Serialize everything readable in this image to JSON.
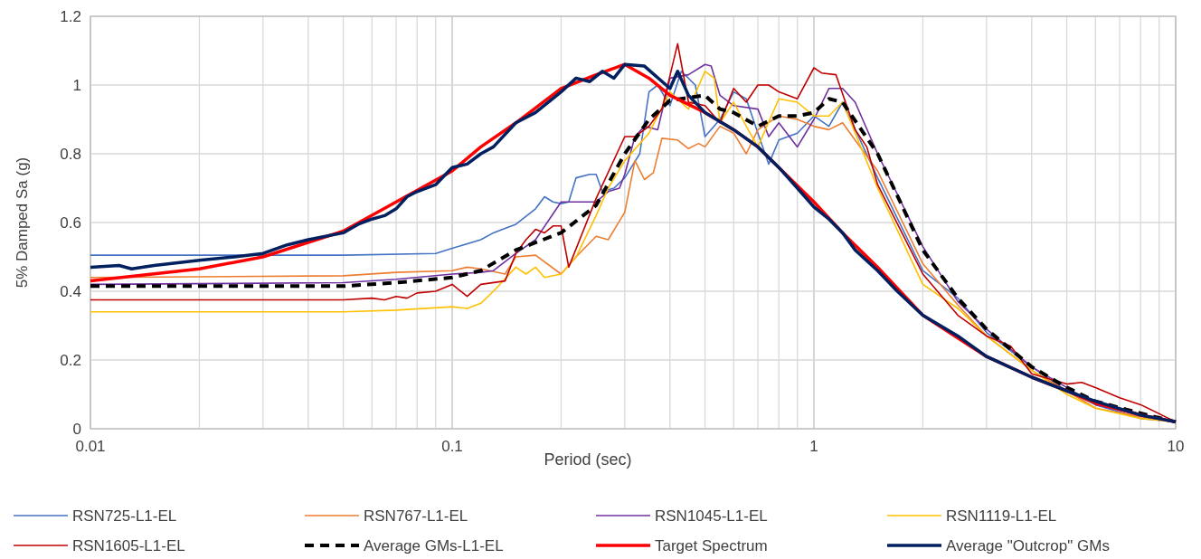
{
  "chart_data": {
    "type": "line",
    "xlabel": "Period (sec)",
    "ylabel": "5% Damped Sa (g)",
    "log": "x",
    "xlim": [
      0.01,
      10
    ],
    "xticks": [
      0.01,
      0.1,
      1,
      10
    ],
    "ylim": [
      0,
      1.2
    ],
    "yticks": [
      0,
      0.2,
      0.4,
      0.6,
      0.8,
      1,
      1.2
    ],
    "grid": true,
    "legend": "bottom",
    "line_style": "solid",
    "series": [
      {
        "name": "RSN725-L1-EL",
        "color": "#4472c4",
        "x": [
          0.01,
          0.05,
          0.09,
          0.1,
          0.12,
          0.13,
          0.15,
          0.17,
          0.18,
          0.19,
          0.2,
          0.21,
          0.22,
          0.24,
          0.25,
          0.26,
          0.28,
          0.3,
          0.33,
          0.35,
          0.37,
          0.4,
          0.43,
          0.47,
          0.5,
          0.55,
          0.6,
          0.65,
          0.7,
          0.75,
          0.8,
          0.9,
          1,
          1.1,
          1.2,
          1.5,
          2,
          2.5,
          3,
          4,
          5,
          6,
          8,
          10
        ],
        "values": [
          0.505,
          0.505,
          0.51,
          0.525,
          0.55,
          0.57,
          0.595,
          0.64,
          0.675,
          0.66,
          0.655,
          0.66,
          0.73,
          0.74,
          0.74,
          0.69,
          0.7,
          0.73,
          0.8,
          0.98,
          1,
          0.94,
          1.04,
          1,
          0.85,
          0.9,
          0.98,
          0.96,
          0.86,
          0.77,
          0.84,
          0.86,
          0.91,
          0.88,
          0.95,
          0.73,
          0.46,
          0.38,
          0.28,
          0.18,
          0.11,
          0.07,
          0.03,
          0.02
        ]
      },
      {
        "name": "RSN767-L1-EL",
        "color": "#ed7d31",
        "x": [
          0.01,
          0.05,
          0.07,
          0.1,
          0.11,
          0.12,
          0.14,
          0.15,
          0.17,
          0.2,
          0.22,
          0.25,
          0.27,
          0.3,
          0.32,
          0.34,
          0.36,
          0.38,
          0.42,
          0.45,
          0.48,
          0.5,
          0.55,
          0.6,
          0.65,
          0.7,
          0.8,
          0.9,
          1,
          1.1,
          1.2,
          1.5,
          2,
          2.5,
          3,
          4,
          5,
          6,
          8,
          10
        ],
        "values": [
          0.44,
          0.445,
          0.455,
          0.46,
          0.47,
          0.465,
          0.45,
          0.5,
          0.505,
          0.45,
          0.5,
          0.56,
          0.55,
          0.63,
          0.78,
          0.725,
          0.745,
          0.845,
          0.84,
          0.815,
          0.83,
          0.82,
          0.88,
          0.86,
          0.8,
          0.87,
          0.91,
          0.9,
          0.88,
          0.87,
          0.89,
          0.75,
          0.48,
          0.36,
          0.27,
          0.17,
          0.11,
          0.06,
          0.035,
          0.02
        ]
      },
      {
        "name": "RSN1045-L1-EL",
        "color": "#7030a0",
        "x": [
          0.01,
          0.05,
          0.07,
          0.1,
          0.12,
          0.13,
          0.15,
          0.17,
          0.2,
          0.22,
          0.25,
          0.27,
          0.29,
          0.3,
          0.32,
          0.34,
          0.37,
          0.4,
          0.45,
          0.5,
          0.52,
          0.55,
          0.6,
          0.7,
          0.75,
          0.8,
          0.9,
          1,
          1.1,
          1.2,
          1.3,
          1.5,
          2,
          2.5,
          3,
          4,
          5,
          6,
          8,
          10
        ],
        "values": [
          0.42,
          0.425,
          0.435,
          0.45,
          0.455,
          0.46,
          0.51,
          0.55,
          0.66,
          0.66,
          0.66,
          0.69,
          0.7,
          0.74,
          0.85,
          0.88,
          0.87,
          1.02,
          1.03,
          1.06,
          1.055,
          0.97,
          0.94,
          0.93,
          0.85,
          0.89,
          0.82,
          0.9,
          0.99,
          0.99,
          0.95,
          0.8,
          0.53,
          0.37,
          0.29,
          0.18,
          0.12,
          0.07,
          0.04,
          0.02
        ]
      },
      {
        "name": "RSN1119-L1-EL",
        "color": "#ffc000",
        "x": [
          0.01,
          0.05,
          0.07,
          0.1,
          0.11,
          0.12,
          0.13,
          0.15,
          0.16,
          0.17,
          0.18,
          0.2,
          0.22,
          0.25,
          0.27,
          0.3,
          0.35,
          0.4,
          0.45,
          0.5,
          0.53,
          0.55,
          0.6,
          0.65,
          0.7,
          0.8,
          0.9,
          1,
          1.1,
          1.2,
          1.5,
          2,
          2.5,
          3,
          4,
          5,
          6,
          8,
          10
        ],
        "values": [
          0.34,
          0.34,
          0.345,
          0.355,
          0.35,
          0.365,
          0.4,
          0.47,
          0.45,
          0.47,
          0.44,
          0.45,
          0.5,
          0.62,
          0.7,
          0.78,
          0.86,
          0.98,
          0.93,
          1.04,
          1.02,
          0.89,
          0.95,
          0.88,
          0.82,
          0.96,
          0.95,
          0.91,
          0.91,
          0.95,
          0.7,
          0.42,
          0.35,
          0.27,
          0.17,
          0.1,
          0.06,
          0.03,
          0.02
        ]
      },
      {
        "name": "RSN1605-L1-EL",
        "color": "#c00000",
        "x": [
          0.01,
          0.05,
          0.06,
          0.065,
          0.07,
          0.075,
          0.08,
          0.09,
          0.1,
          0.11,
          0.12,
          0.14,
          0.15,
          0.16,
          0.17,
          0.18,
          0.19,
          0.2,
          0.21,
          0.25,
          0.3,
          0.32,
          0.35,
          0.38,
          0.42,
          0.45,
          0.5,
          0.55,
          0.6,
          0.65,
          0.7,
          0.75,
          0.8,
          0.9,
          1,
          1.05,
          1.15,
          1.3,
          1.4,
          1.5,
          2,
          2.5,
          3,
          3.5,
          4,
          5,
          5.5,
          6,
          7,
          8,
          10
        ],
        "values": [
          0.375,
          0.375,
          0.38,
          0.375,
          0.385,
          0.38,
          0.395,
          0.4,
          0.42,
          0.385,
          0.42,
          0.43,
          0.51,
          0.55,
          0.58,
          0.57,
          0.59,
          0.59,
          0.47,
          0.67,
          0.85,
          0.85,
          0.88,
          0.93,
          1.12,
          0.95,
          0.94,
          0.89,
          0.99,
          0.95,
          1,
          1,
          0.98,
          0.96,
          1.05,
          1.035,
          1.03,
          0.87,
          0.82,
          0.71,
          0.45,
          0.33,
          0.27,
          0.24,
          0.16,
          0.13,
          0.135,
          0.12,
          0.09,
          0.07,
          0.02
        ]
      },
      {
        "name": "Average GMs-L1-EL",
        "color": "#000000",
        "line_style": "dashed",
        "x": [
          0.01,
          0.05,
          0.07,
          0.1,
          0.12,
          0.15,
          0.2,
          0.25,
          0.3,
          0.35,
          0.4,
          0.5,
          0.55,
          0.6,
          0.7,
          0.8,
          0.9,
          1,
          1.1,
          1.2,
          1.5,
          2,
          2.5,
          3,
          4,
          5,
          6,
          8,
          10
        ],
        "values": [
          0.415,
          0.415,
          0.425,
          0.44,
          0.46,
          0.52,
          0.57,
          0.65,
          0.8,
          0.9,
          0.955,
          0.97,
          0.93,
          0.92,
          0.88,
          0.91,
          0.91,
          0.92,
          0.96,
          0.95,
          0.8,
          0.52,
          0.38,
          0.29,
          0.18,
          0.12,
          0.08,
          0.045,
          0.02
        ]
      },
      {
        "name": "Target Spectrum",
        "color": "#ff0000",
        "x": [
          0.01,
          0.02,
          0.03,
          0.05,
          0.07,
          0.1,
          0.12,
          0.15,
          0.2,
          0.25,
          0.3,
          0.35,
          0.4,
          0.5,
          0.6,
          0.7,
          0.8,
          1,
          1.2,
          1.5,
          2,
          3,
          4,
          5,
          6,
          8,
          10
        ],
        "values": [
          0.43,
          0.465,
          0.5,
          0.575,
          0.66,
          0.75,
          0.82,
          0.89,
          0.99,
          1.03,
          1.06,
          1.02,
          0.97,
          0.92,
          0.87,
          0.82,
          0.76,
          0.66,
          0.57,
          0.47,
          0.33,
          0.21,
          0.15,
          0.11,
          0.075,
          0.04,
          0.02
        ]
      },
      {
        "name": "Average \"Outcrop\" GMs",
        "color": "#002060",
        "x": [
          0.01,
          0.012,
          0.013,
          0.015,
          0.02,
          0.025,
          0.03,
          0.035,
          0.04,
          0.05,
          0.055,
          0.06,
          0.065,
          0.07,
          0.075,
          0.08,
          0.09,
          0.1,
          0.11,
          0.12,
          0.13,
          0.15,
          0.17,
          0.2,
          0.22,
          0.24,
          0.26,
          0.28,
          0.3,
          0.34,
          0.4,
          0.42,
          0.45,
          0.5,
          0.6,
          0.7,
          0.8,
          0.9,
          1,
          1.1,
          1.2,
          1.3,
          1.5,
          1.7,
          2,
          2.5,
          3,
          4,
          5,
          6,
          8,
          10
        ],
        "values": [
          0.47,
          0.475,
          0.465,
          0.475,
          0.49,
          0.5,
          0.51,
          0.535,
          0.55,
          0.57,
          0.595,
          0.61,
          0.62,
          0.64,
          0.675,
          0.69,
          0.71,
          0.76,
          0.77,
          0.8,
          0.82,
          0.89,
          0.92,
          0.98,
          1.02,
          1.01,
          1.04,
          1.02,
          1.06,
          1.055,
          0.99,
          1.04,
          0.97,
          0.92,
          0.87,
          0.82,
          0.76,
          0.7,
          0.645,
          0.61,
          0.57,
          0.52,
          0.46,
          0.4,
          0.33,
          0.27,
          0.21,
          0.15,
          0.11,
          0.08,
          0.04,
          0.02
        ]
      }
    ]
  }
}
